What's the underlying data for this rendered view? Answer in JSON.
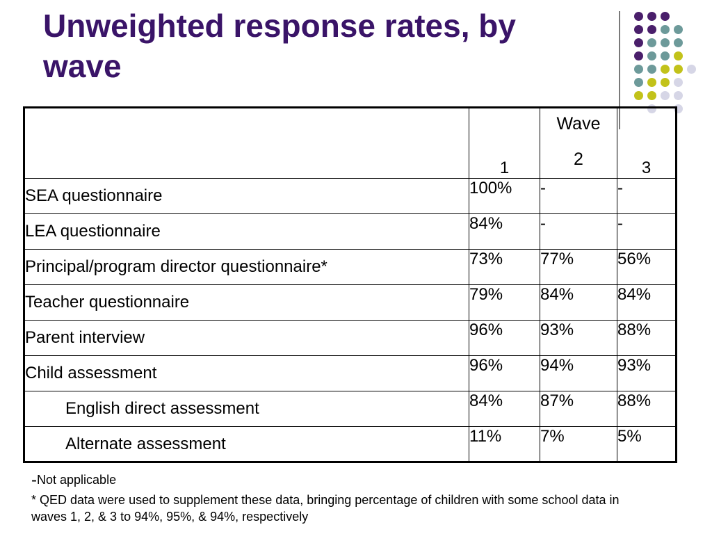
{
  "slide": {
    "title": "Unweighted response rates, by wave"
  },
  "table": {
    "group_header": "Wave",
    "wave_columns": [
      "1",
      "2",
      "3"
    ],
    "rows": [
      {
        "label": "SEA questionnaire",
        "values": [
          "100%",
          "-",
          "-"
        ],
        "indent": false
      },
      {
        "label": "LEA questionnaire",
        "values": [
          "84%",
          "-",
          "-"
        ],
        "indent": false
      },
      {
        "label": "Principal/program director questionnaire*",
        "values": [
          "73%",
          "77%",
          "56%"
        ],
        "indent": false
      },
      {
        "label": "Teacher questionnaire",
        "values": [
          "79%",
          "84%",
          "84%"
        ],
        "indent": false
      },
      {
        "label": "Parent interview",
        "values": [
          "96%",
          "93%",
          "88%"
        ],
        "indent": false
      },
      {
        "label": "Child assessment",
        "values": [
          "96%",
          "94%",
          "93%"
        ],
        "indent": false
      },
      {
        "label": "English direct assessment",
        "values": [
          "84%",
          "87%",
          "88%"
        ],
        "indent": true
      },
      {
        "label": "Alternate assessment",
        "values": [
          "11%",
          "7%",
          "5%"
        ],
        "indent": true
      }
    ]
  },
  "notes": {
    "not_applicable_marker": "-",
    "not_applicable_text": "Not applicable",
    "footnote": "* QED data were used to supplement these data, bringing percentage of children with some school data in waves 1, 2, & 3 to 94%, 95%, & 94%, respectively"
  },
  "colors": {
    "title": "#3a1468",
    "dot_purple": "#4a1f6b",
    "dot_teal": "#6d9a9a",
    "dot_lime": "#c2c21a",
    "dot_lavender": "#d6d6e6"
  }
}
